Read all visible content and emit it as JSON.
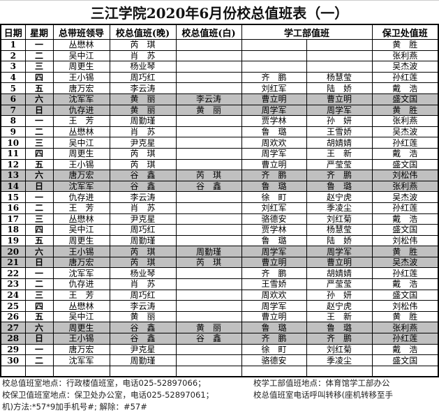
{
  "title": "三江学院2020年6月份校总值班表（一）",
  "headers": [
    "日期",
    "星期",
    "总带班领导",
    "校总值班(晚)",
    "校总值班(白)",
    "学工部值班",
    "保卫处值班"
  ],
  "gray_color": "#c0c0c0",
  "rows": [
    {
      "date": "1",
      "weekday": "一",
      "leader": "丛懋林",
      "night": "芮　琪",
      "day": "",
      "xg1": "",
      "xg2": "",
      "bw": "黄　胜",
      "gray": false
    },
    {
      "date": "2",
      "weekday": "二",
      "leader": "吴中江",
      "night": "肖　苏",
      "day": "",
      "xg1": "",
      "xg2": "",
      "bw": "张利燕",
      "gray": false
    },
    {
      "date": "3",
      "weekday": "三",
      "leader": "周更生",
      "night": "杨业琴",
      "day": "",
      "xg1": "",
      "xg2": "",
      "bw": "吴杰波",
      "gray": false
    },
    {
      "date": "4",
      "weekday": "四",
      "leader": "王小锡",
      "night": "周巧红",
      "day": "",
      "xg1": "齐　鹏",
      "xg2": "杨慧莹",
      "bw": "孙红莲",
      "gray": false
    },
    {
      "date": "5",
      "weekday": "五",
      "leader": "唐万宏",
      "night": "李云涛",
      "day": "",
      "xg1": "刘红军",
      "xg2": "陆　娇",
      "bw": "戴　浩",
      "gray": false
    },
    {
      "date": "6",
      "weekday": "六",
      "leader": "沈军军",
      "night": "黄　丽",
      "day": "李云涛",
      "xg1": "曹立明",
      "xg2": "曹立明",
      "bw": "盛文国",
      "gray": true
    },
    {
      "date": "7",
      "weekday": "日",
      "leader": "仇存进",
      "night": "黄　丽",
      "day": "黄　丽",
      "xg1": "周学军",
      "xg2": "周学军",
      "bw": "黄　胜",
      "gray": true
    },
    {
      "date": "8",
      "weekday": "一",
      "leader": "王　芳",
      "night": "周勤瑾",
      "day": "",
      "xg1": "贾学林",
      "xg2": "孙　妍",
      "bw": "张利燕",
      "gray": false
    },
    {
      "date": "9",
      "weekday": "二",
      "leader": "丛懋林",
      "night": "肖　苏",
      "day": "",
      "xg1": "鲁　璐",
      "xg2": "王雪娇",
      "bw": "吴杰波",
      "gray": false
    },
    {
      "date": "10",
      "weekday": "三",
      "leader": "吴中江",
      "night": "尹克星",
      "day": "",
      "xg1": "周欢欢",
      "xg2": "胡婧婧",
      "bw": "孙红莲",
      "gray": false
    },
    {
      "date": "11",
      "weekday": "四",
      "leader": "周更生",
      "night": "芮　琪",
      "day": "",
      "xg1": "周学军",
      "xg2": "王　新",
      "bw": "戴　浩",
      "gray": false
    },
    {
      "date": "12",
      "weekday": "五",
      "leader": "王小锡",
      "night": "芮　琪",
      "day": "",
      "xg1": "曹立明",
      "xg2": "严莹莹",
      "bw": "盛文国",
      "gray": false
    },
    {
      "date": "13",
      "weekday": "六",
      "leader": "唐万宏",
      "night": "谷　鑫",
      "day": "芮　琪",
      "xg1": "齐　鹏",
      "xg2": "齐　鹏",
      "bw": "刘松伟",
      "gray": true
    },
    {
      "date": "14",
      "weekday": "日",
      "leader": "沈军军",
      "night": "谷　鑫",
      "day": "谷　鑫",
      "xg1": "鲁　璐",
      "xg2": "鲁　璐",
      "bw": "张利燕",
      "gray": true
    },
    {
      "date": "15",
      "weekday": "一",
      "leader": "仇存进",
      "night": "李云涛",
      "day": "",
      "xg1": "徐　町",
      "xg2": "赵宁虎",
      "bw": "吴杰波",
      "gray": false
    },
    {
      "date": "16",
      "weekday": "二",
      "leader": "王　芳",
      "night": "肖　苏",
      "day": "",
      "xg1": "刘红军",
      "xg2": "季凌尘",
      "bw": "孙红莲",
      "gray": false
    },
    {
      "date": "17",
      "weekday": "三",
      "leader": "丛懋林",
      "night": "尹克星",
      "day": "",
      "xg1": "骆德安",
      "xg2": "刘红菊",
      "bw": "戴　浩",
      "gray": false
    },
    {
      "date": "18",
      "weekday": "四",
      "leader": "吴中江",
      "night": "周巧红",
      "day": "",
      "xg1": "贾学林",
      "xg2": "杨慧莹",
      "bw": "盛文国",
      "gray": false
    },
    {
      "date": "19",
      "weekday": "五",
      "leader": "周更生",
      "night": "周勤瑾",
      "day": "",
      "xg1": "鲁　璐",
      "xg2": "陆　娇",
      "bw": "刘松伟",
      "gray": false
    },
    {
      "date": "20",
      "weekday": "六",
      "leader": "王小锡",
      "night": "芮　琪",
      "day": "周勤瑾",
      "xg1": "周学军",
      "xg2": "周学军",
      "bw": "黄　胜",
      "gray": true
    },
    {
      "date": "21",
      "weekday": "日",
      "leader": "唐万宏",
      "night": "芮　琪",
      "day": "芮　琪",
      "xg1": "曹立明",
      "xg2": "曹立明",
      "bw": "吴杰波",
      "gray": true
    },
    {
      "date": "22",
      "weekday": "一",
      "leader": "沈军军",
      "night": "杨业琴",
      "day": "",
      "xg1": "齐　鹏",
      "xg2": "胡婧婧",
      "bw": "孙红莲",
      "gray": false
    },
    {
      "date": "23",
      "weekday": "二",
      "leader": "仇存进",
      "night": "肖　苏",
      "day": "",
      "xg1": "王雪娇",
      "xg2": "严莹莹",
      "bw": "戴　浩",
      "gray": false
    },
    {
      "date": "24",
      "weekday": "三",
      "leader": "王　芳",
      "night": "周巧红",
      "day": "",
      "xg1": "周欢欢",
      "xg2": "孙　妍",
      "bw": "盛文国",
      "gray": false
    },
    {
      "date": "25",
      "weekday": "四",
      "leader": "丛懋林",
      "night": "李云涛",
      "day": "",
      "xg1": "周学军",
      "xg2": "赵宁虎",
      "bw": "刘松伟",
      "gray": false
    },
    {
      "date": "26",
      "weekday": "五",
      "leader": "吴中江",
      "night": "黄　丽",
      "day": "",
      "xg1": "曹立明",
      "xg2": "王　新",
      "bw": "黄　胜",
      "gray": false
    },
    {
      "date": "27",
      "weekday": "六",
      "leader": "周更生",
      "night": "谷　鑫",
      "day": "黄　丽",
      "xg1": "鲁　璐",
      "xg2": "鲁　璐",
      "bw": "张利燕",
      "gray": true
    },
    {
      "date": "28",
      "weekday": "日",
      "leader": "王小锡",
      "night": "谷　鑫",
      "day": "谷　鑫",
      "xg1": "齐　鹏",
      "xg2": "齐　鹏",
      "bw": "孙红莲",
      "gray": true
    },
    {
      "date": "29",
      "weekday": "一",
      "leader": "唐万宏",
      "night": "尹克星",
      "day": "",
      "xg1": "徐　町",
      "xg2": "刘红菊",
      "bw": "戴　浩",
      "gray": false
    },
    {
      "date": "30",
      "weekday": "二",
      "leader": "沈军军",
      "night": "周勤瑾",
      "day": "",
      "xg1": "骆德安",
      "xg2": "季凌尘",
      "bw": "盛文国",
      "gray": false
    }
  ],
  "notes": {
    "line1a": "校总值班室地点：行政楼值班室，电话025-52897066；",
    "line1b": "校学工部值班地点：体育馆学工部办公",
    "line2a": "校保卫值班室地点：保卫处办公室，电话025-52897061；",
    "line2b": "校总值班室电话呼叫转移(座机转移至手",
    "line3": "机)方法:*57*9加手机号#; 解除：#57#"
  }
}
